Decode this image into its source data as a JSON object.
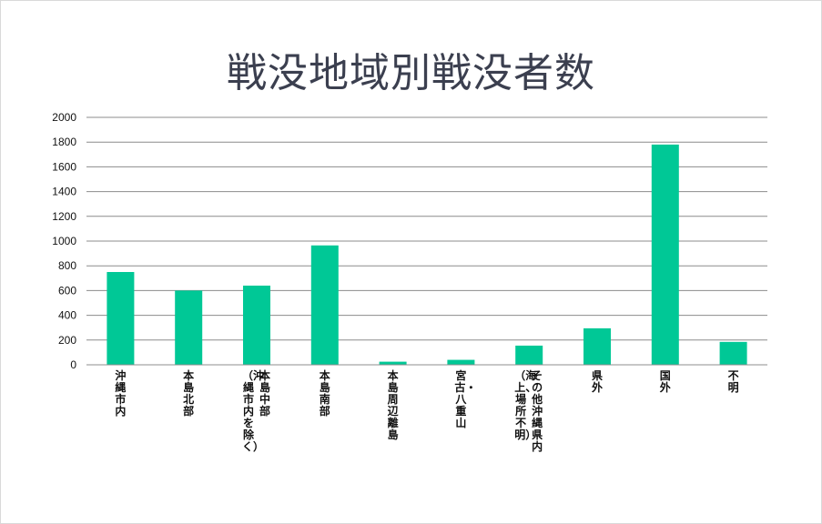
{
  "chart_data": {
    "type": "bar",
    "title": "戦没地域別戦没者数",
    "xlabel": "",
    "ylabel": "",
    "ylim": [
      0,
      2000
    ],
    "yticks": [
      0,
      200,
      400,
      600,
      800,
      1000,
      1200,
      1400,
      1600,
      1800,
      2000
    ],
    "grid": true,
    "bar_color": "#00c896",
    "categories": [
      "沖縄市内",
      "本島北部",
      "本島中部（沖縄市内を除く）",
      "本島南部",
      "本島周辺離島",
      "宮古・八重山",
      "その他沖縄県内（海上、場所不明）",
      "県外",
      "国外",
      "不明"
    ],
    "values": [
      750,
      600,
      640,
      965,
      25,
      40,
      155,
      295,
      1780,
      185
    ]
  }
}
